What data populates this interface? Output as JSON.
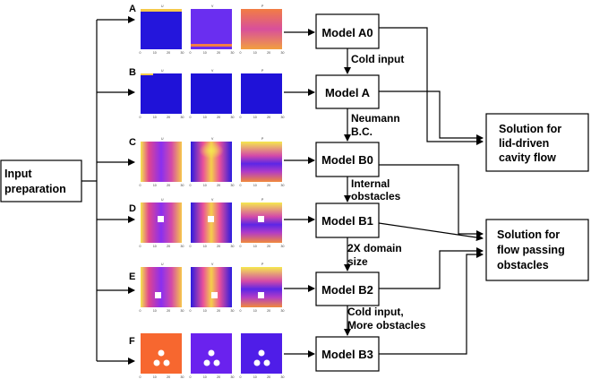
{
  "input_label": [
    "Input",
    "preparation"
  ],
  "rows": [
    {
      "letter": "A",
      "panel_titles": [
        "U",
        "V",
        "P"
      ],
      "model": "Model A0"
    },
    {
      "letter": "B",
      "panel_titles": [
        "U",
        "V",
        "P"
      ],
      "model": "Model A"
    },
    {
      "letter": "C",
      "panel_titles": [
        "U",
        "V",
        "P"
      ],
      "model": "Model B0"
    },
    {
      "letter": "D",
      "panel_titles": [
        "U",
        "V",
        "P"
      ],
      "model": "Model B1"
    },
    {
      "letter": "E",
      "panel_titles": [
        "U",
        "V",
        "P"
      ],
      "model": "Model B2"
    },
    {
      "letter": "F",
      "panel_titles": [
        "",
        "",
        ""
      ],
      "model": "Model B3"
    }
  ],
  "transitions": [
    [
      "Cold input"
    ],
    [
      "Neumann",
      "B.C."
    ],
    [
      "Internal",
      "obstacles"
    ],
    [
      "2X domain",
      "size"
    ],
    [
      "Cold input,",
      "More obstacles"
    ]
  ],
  "outputs": [
    {
      "lines": [
        "Solution for",
        "lid-driven",
        "cavity flow"
      ]
    },
    {
      "lines": [
        "Solution for",
        "flow passing",
        "obstacles"
      ]
    }
  ],
  "ticks": [
    "0",
    "10",
    "20",
    "30"
  ],
  "colors": {
    "deep_blue": "#1f12d8",
    "violet": "#7b2ff0",
    "magenta": "#d44aa8",
    "orange": "#f08a3c",
    "yellow": "#f5e94e",
    "solid_orange": "#f7672f"
  }
}
